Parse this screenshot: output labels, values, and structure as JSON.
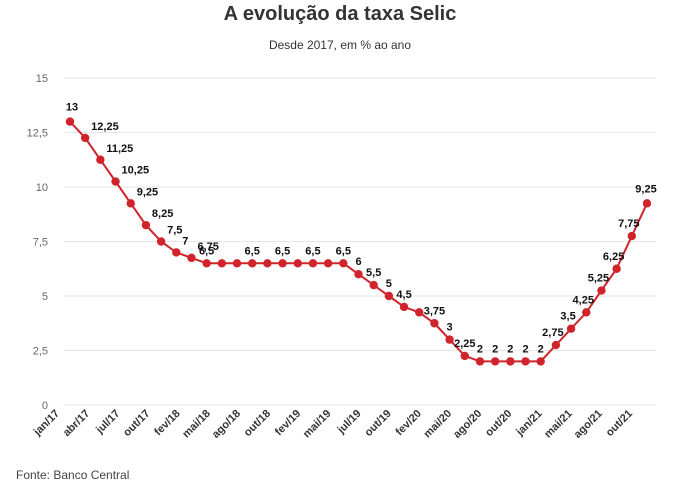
{
  "title": "A evolução da taxa Selic",
  "subtitle": "Desde 2017, em % ao ano",
  "source": "Fonte: Banco Central",
  "colors": {
    "line": "#d0232b",
    "grid": "#e6e6e6"
  },
  "chart_data": {
    "type": "line",
    "title": "A evolução da taxa Selic",
    "subtitle": "Desde 2017, em % ao ano",
    "ylim": [
      0,
      15
    ],
    "yticks": [
      "0",
      "2,5",
      "5",
      "7,5",
      "10",
      "12,5",
      "15"
    ],
    "grid": true,
    "x_tick_labels": [
      "jan/17",
      "abr/17",
      "jul/17",
      "out/17",
      "fev/18",
      "mai/18",
      "ago/18",
      "out/18",
      "fev/19",
      "mai/19",
      "jul/19",
      "out/19",
      "fev/20",
      "mai/20",
      "ago/20",
      "out/20",
      "jan/21",
      "mai/21",
      "ago/21",
      "out/21"
    ],
    "series": [
      {
        "values": [
          13,
          12.25,
          11.25,
          10.25,
          9.25,
          8.25,
          7.5,
          7,
          6.75,
          6.5,
          6.5,
          6.5,
          6.5,
          6.5,
          6.5,
          6.5,
          6.5,
          6.5,
          6.5,
          6,
          5.5,
          5,
          4.5,
          4.25,
          3.75,
          3,
          2.25,
          2,
          2,
          2,
          2,
          2,
          2.75,
          3.5,
          4.25,
          5.25,
          6.25,
          7.75,
          9.25
        ],
        "labels": [
          "13",
          "12,25",
          "11,25",
          "10,25",
          "9,25",
          "8,25",
          "7,5",
          "7",
          "6,75",
          "6,5",
          "",
          "",
          "6,5",
          "",
          "6,5",
          "",
          "6,5",
          "",
          "6,5",
          "6",
          "5,5",
          "5",
          "4,5",
          "",
          "3,75",
          "3",
          "2,25",
          "2",
          "2",
          "2",
          "2",
          "2",
          "2,75",
          "3,5",
          "4,25",
          "5,25",
          "6,25",
          "7,75",
          "9,25"
        ]
      }
    ]
  }
}
